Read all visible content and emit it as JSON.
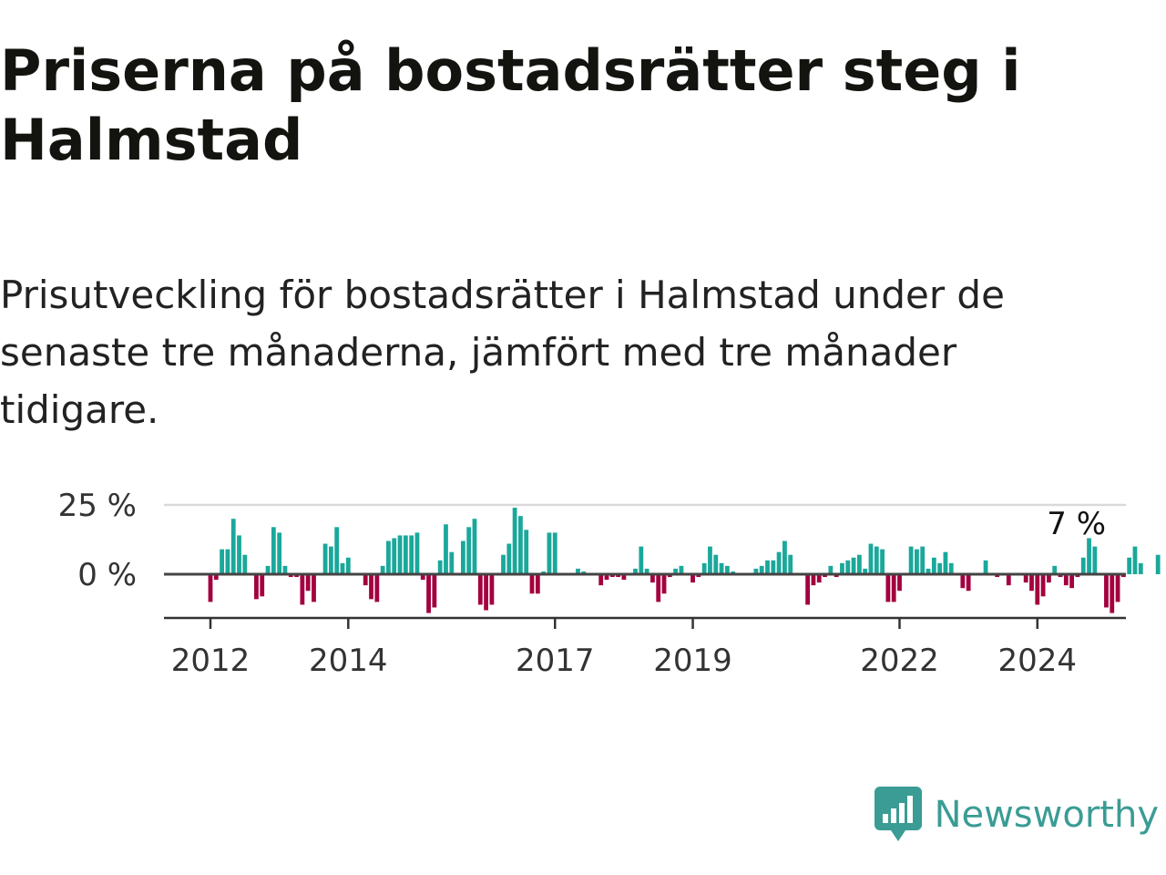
{
  "header": {
    "title": "Priserna på bostadsrätter steg i Halmstad",
    "subtitle": "Prisutveckling för bostadsrätter i Halmstad under de senaste tre månaderna, jämfört med tre månader tidigare."
  },
  "brand": {
    "name": "Newsworthy",
    "icon": "bar-chart-speech-bubble-icon",
    "color": "#3a9c94"
  },
  "chart_data": {
    "type": "bar",
    "title": "",
    "xlabel": "",
    "ylabel": "",
    "x_start": "2012-01",
    "x_step": "1 month",
    "ylim": [
      -16,
      25
    ],
    "y_ticks": [
      {
        "value": 25,
        "label": "25 %"
      },
      {
        "value": 0,
        "label": "0 %"
      }
    ],
    "x_ticks": [
      {
        "year": 2012,
        "label": "2012"
      },
      {
        "year": 2014,
        "label": "2014"
      },
      {
        "year": 2017,
        "label": "2017"
      },
      {
        "year": 2019,
        "label": "2019"
      },
      {
        "year": 2022,
        "label": "2022"
      },
      {
        "year": 2024,
        "label": "2024"
      }
    ],
    "grid": true,
    "colors": {
      "positive": "#1aa89b",
      "negative": "#a3003f",
      "zero_line": "#444444",
      "grid": "#d9d9d9",
      "axis": "#333333"
    },
    "annotation": {
      "label": "7 %",
      "value": 7
    },
    "values": [
      -10,
      -2,
      9,
      9,
      20,
      14,
      7,
      0,
      -9,
      -8,
      3,
      17,
      15,
      3,
      -1,
      -1,
      -11,
      -6,
      -10,
      0,
      11,
      10,
      17,
      4,
      6,
      0,
      0,
      -4,
      -9,
      -10,
      3,
      12,
      13,
      14,
      14,
      14,
      15,
      -2,
      -14,
      -12,
      5,
      18,
      8,
      0,
      12,
      17,
      20,
      -11,
      -13,
      -11,
      0,
      7,
      11,
      24,
      21,
      16,
      -7,
      -7,
      1,
      15,
      15,
      0,
      0,
      0,
      2,
      1,
      0,
      0,
      -4,
      -2,
      -1,
      -1,
      -2,
      0,
      2,
      10,
      2,
      -3,
      -10,
      -7,
      -1,
      2,
      3,
      0,
      -3,
      -1,
      4,
      10,
      7,
      4,
      3,
      1,
      0,
      0,
      0,
      2,
      3,
      5,
      5,
      8,
      12,
      7,
      0,
      0,
      -11,
      -4,
      -3,
      -1,
      3,
      -1,
      4,
      5,
      6,
      7,
      2,
      11,
      10,
      9,
      -10,
      -10,
      -6,
      0,
      10,
      9,
      10,
      2,
      6,
      4,
      8,
      4,
      0,
      -5,
      -6,
      0,
      0,
      5,
      0,
      -1,
      0,
      -4,
      0,
      0,
      -3,
      -6,
      -11,
      -8,
      -3,
      3,
      -1,
      -4,
      -5,
      -1,
      6,
      13,
      10,
      0,
      -12,
      -14,
      -10,
      -1,
      6,
      10,
      4,
      0,
      0,
      7
    ]
  }
}
